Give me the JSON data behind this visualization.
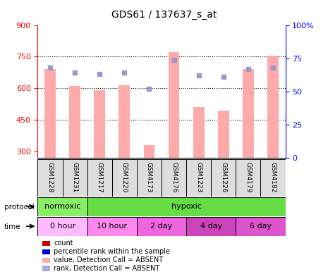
{
  "title": "GDS61 / 137637_s_at",
  "samples": [
    "GSM1228",
    "GSM1231",
    "GSM1217",
    "GSM1220",
    "GSM4173",
    "GSM4176",
    "GSM1223",
    "GSM1226",
    "GSM4179",
    "GSM4182"
  ],
  "bar_values": [
    690,
    610,
    590,
    615,
    330,
    770,
    510,
    495,
    690,
    755
  ],
  "rank_values": [
    68,
    64,
    63,
    64,
    52,
    74,
    62,
    61,
    67,
    68
  ],
  "ylim_left": [
    270,
    900
  ],
  "ylim_right": [
    0,
    100
  ],
  "yticks_left": [
    300,
    450,
    600,
    750,
    900
  ],
  "yticks_right": [
    0,
    25,
    50,
    75,
    100
  ],
  "bar_color": "#ffaaaa",
  "rank_color": "#9999cc",
  "grid_yticks": [
    450,
    600,
    750
  ],
  "protocol_groups": [
    {
      "label": "normoxic",
      "color": "#88ee66",
      "start": 0,
      "end": 2
    },
    {
      "label": "hypoxic",
      "color": "#66dd44",
      "start": 2,
      "end": 10
    }
  ],
  "time_groups": [
    {
      "label": "0 hour",
      "color": "#ffbbff",
      "start": 0,
      "end": 2
    },
    {
      "label": "10 hour",
      "color": "#ff88ee",
      "start": 2,
      "end": 4
    },
    {
      "label": "2 day",
      "color": "#ee66dd",
      "start": 4,
      "end": 6
    },
    {
      "label": "4 day",
      "color": "#cc44bb",
      "start": 6,
      "end": 8
    },
    {
      "label": "6 day",
      "color": "#dd55cc",
      "start": 8,
      "end": 10
    }
  ],
  "legend_items": [
    {
      "label": "count",
      "color": "#cc0000"
    },
    {
      "label": "percentile rank within the sample",
      "color": "#0000cc"
    },
    {
      "label": "value, Detection Call = ABSENT",
      "color": "#ffaaaa"
    },
    {
      "label": "rank, Detection Call = ABSENT",
      "color": "#aaaadd"
    }
  ],
  "sample_box_color": "#dddddd",
  "chart_bg": "#ffffff"
}
